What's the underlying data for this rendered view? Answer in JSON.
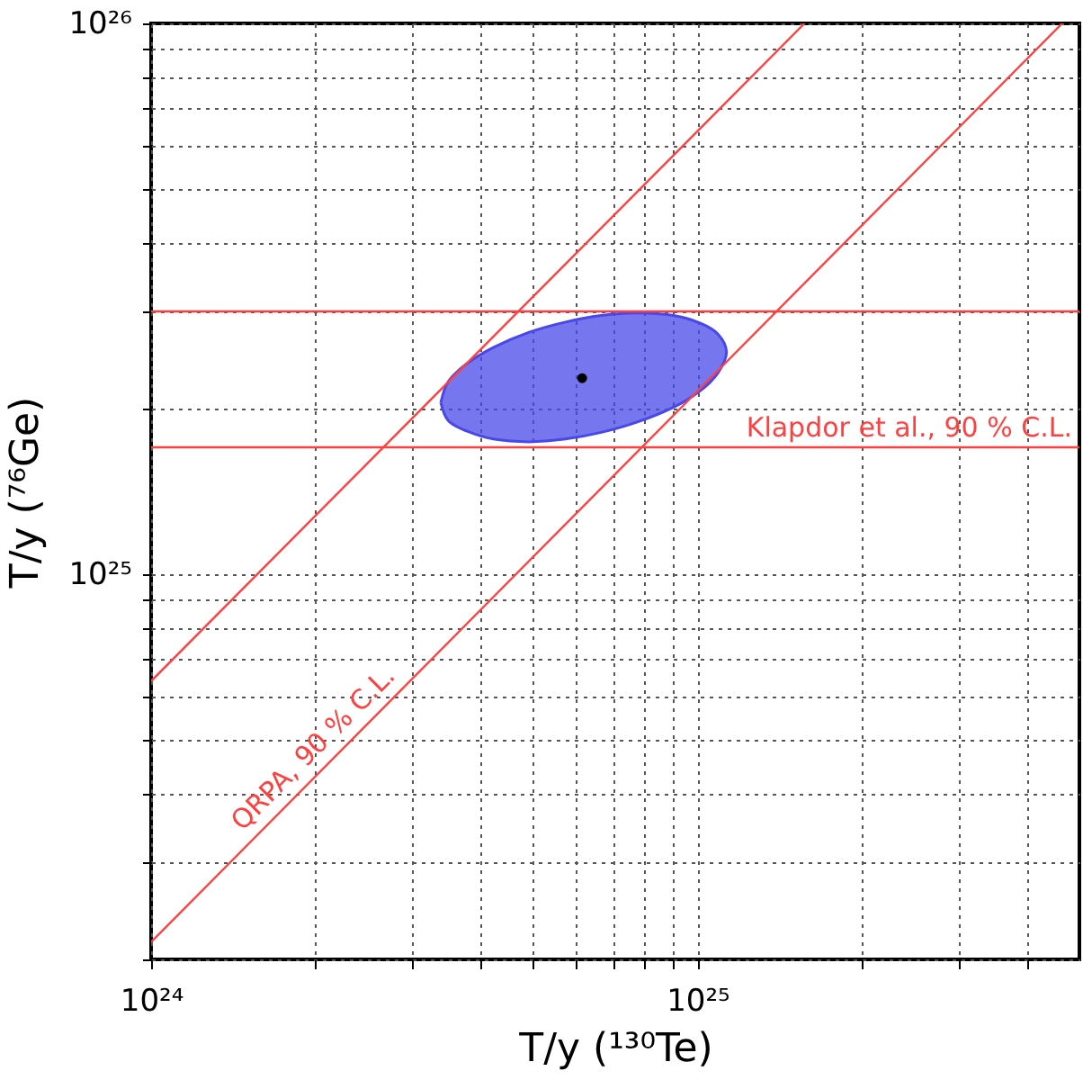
{
  "chart_data": {
    "type": "line",
    "xlabel": "T/y (¹³⁰Te)",
    "ylabel": "T/y (⁷⁶Ge)",
    "log": "xy",
    "grid": true,
    "xlim": [
      1e+24,
      5e+25
    ],
    "ylim": [
      2e+24,
      1e+26
    ],
    "xticks": [
      {
        "value": 1e+24,
        "label": "10²⁴"
      },
      {
        "value": 2e+24,
        "label": null
      },
      {
        "value": 3e+24,
        "label": null
      },
      {
        "value": 4e+24,
        "label": null
      },
      {
        "value": 5e+24,
        "label": null
      },
      {
        "value": 6e+24,
        "label": null
      },
      {
        "value": 7e+24,
        "label": null
      },
      {
        "value": 8e+24,
        "label": null
      },
      {
        "value": 9e+24,
        "label": null
      },
      {
        "value": 1e+25,
        "label": "10²⁵"
      },
      {
        "value": 2e+25,
        "label": null
      },
      {
        "value": 3e+25,
        "label": null
      },
      {
        "value": 4e+25,
        "label": null
      }
    ],
    "yticks": [
      {
        "value": 2e+24,
        "label": null
      },
      {
        "value": 3e+24,
        "label": null
      },
      {
        "value": 4e+24,
        "label": null
      },
      {
        "value": 5e+24,
        "label": null
      },
      {
        "value": 6e+24,
        "label": null
      },
      {
        "value": 7e+24,
        "label": null
      },
      {
        "value": 8e+24,
        "label": null
      },
      {
        "value": 9e+24,
        "label": null
      },
      {
        "value": 1e+25,
        "label": "10²⁵"
      },
      {
        "value": 2e+25,
        "label": null
      },
      {
        "value": 3e+25,
        "label": null
      },
      {
        "value": 4e+25,
        "label": null
      },
      {
        "value": 5e+25,
        "label": null
      },
      {
        "value": 6e+25,
        "label": null
      },
      {
        "value": 7e+25,
        "label": null
      },
      {
        "value": 8e+25,
        "label": null
      },
      {
        "value": 9e+25,
        "label": null
      },
      {
        "value": 1e+26,
        "label": "10²⁶"
      }
    ],
    "series": [
      {
        "type": "area",
        "color": "#4848e8",
        "x": [
          3.39e+24,
          3.5e+24,
          3.78e+24,
          4.23e+24,
          4.92e+24,
          5.73e+24,
          6.67e+24,
          7.76e+24,
          9.03e+24,
          1.01e+25,
          1.09e+25,
          1.13e+25,
          1.09e+25,
          1.01e+25,
          9.03e+24,
          7.76e+24,
          6.67e+24,
          5.73e+24,
          4.92e+24,
          4.23e+24,
          3.78e+24,
          3.5e+24,
          3.39e+24
        ],
        "values": [
          2.05e+25,
          2.24e+25,
          2.41e+25,
          2.58e+25,
          2.75e+25,
          2.87e+25,
          2.95e+25,
          2.98e+25,
          2.95e+25,
          2.86e+25,
          2.73e+25,
          2.53e+25,
          2.32e+25,
          2.15e+25,
          2.01e+25,
          1.89e+25,
          1.81e+25,
          1.76e+25,
          1.74e+25,
          1.76e+25,
          1.82e+25,
          1.9e+25,
          2.05e+25
        ]
      },
      {
        "color": "#ff4040",
        "x": [
          1e+24,
          1.57e+25
        ],
        "values": [
          6.4e+24,
          1e+26
        ]
      },
      {
        "color": "#ff4040",
        "x": [
          1e+24,
          4.65e+25
        ],
        "values": [
          2.15e+24,
          1e+26
        ]
      },
      {
        "type": "scatter",
        "color": "#000000",
        "marker": "circle",
        "x": [
          6.15e+24
        ],
        "values": [
          2.27e+25
        ]
      }
    ],
    "ref_lines": [
      {
        "axis": "y",
        "value": 3e+25,
        "color": "#ff4040"
      },
      {
        "axis": "y",
        "value": 1.7e+25,
        "label": "Klapdor et al., 90 % C.L.",
        "color": "#ff4040"
      }
    ],
    "annotations": [
      "QRPA, 90 % C.L."
    ]
  }
}
